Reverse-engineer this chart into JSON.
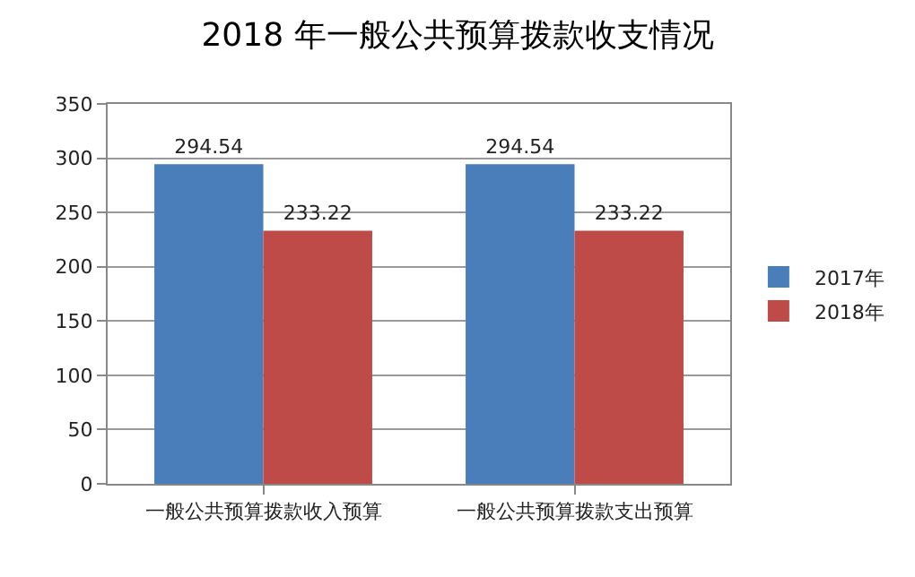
{
  "chart_data": {
    "type": "bar",
    "title": "2018 年一般公共预算拨款收支情况",
    "categories": [
      "一般公共预算拨款收入预算",
      "一般公共预算拨款支出预算"
    ],
    "series": [
      {
        "name": "2017年",
        "color": "#4a7ebb",
        "values": [
          294.54,
          294.54
        ]
      },
      {
        "name": "2018年",
        "color": "#be4b48",
        "values": [
          233.22,
          233.22
        ]
      }
    ],
    "ylim": [
      0,
      350
    ],
    "yticks": [
      0,
      50,
      100,
      150,
      200,
      250,
      300,
      350
    ],
    "grid": "y",
    "legend": "right",
    "data_labels": true
  }
}
